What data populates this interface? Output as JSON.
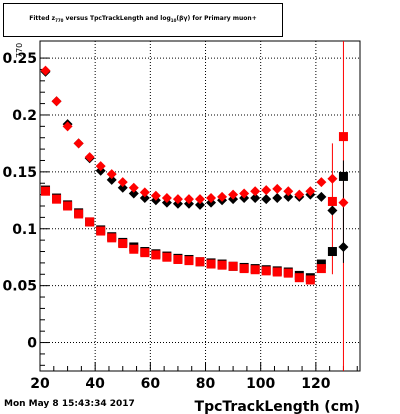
{
  "title": {
    "prefix": "Fitted  z",
    "sub1": "770",
    "middle": "  versus  TpcTrackLength and log",
    "sub2": "10",
    "suffix": "(βγ) for Primary muon+"
  },
  "timestamp": "Mon May  8 15:43:34 2017",
  "chart_data": {
    "type": "scatter",
    "xlabel": "TpcTrackLength (cm)",
    "ylabel": "770",
    "xlim": [
      20,
      136
    ],
    "ylim": [
      -0.025,
      0.265
    ],
    "grid": true,
    "x_ticks": [
      20,
      40,
      60,
      80,
      100,
      120
    ],
    "y_ticks": [
      0,
      0.05,
      0.1,
      0.15,
      0.2,
      0.25
    ],
    "y_tick_labels": [
      "0",
      "0.05",
      "0.1",
      "0.15",
      "0.2",
      "0.25"
    ],
    "series": [
      {
        "marker": "diamond",
        "color": "#000000",
        "points": [
          {
            "x": 22,
            "y": 0.238
          },
          {
            "x": 26,
            "y": 0.212
          },
          {
            "x": 30,
            "y": 0.192
          },
          {
            "x": 34,
            "y": 0.175
          },
          {
            "x": 38,
            "y": 0.162
          },
          {
            "x": 42,
            "y": 0.151
          },
          {
            "x": 46,
            "y": 0.143
          },
          {
            "x": 50,
            "y": 0.136
          },
          {
            "x": 54,
            "y": 0.131
          },
          {
            "x": 58,
            "y": 0.127
          },
          {
            "x": 62,
            "y": 0.125
          },
          {
            "x": 66,
            "y": 0.123
          },
          {
            "x": 70,
            "y": 0.122
          },
          {
            "x": 74,
            "y": 0.122
          },
          {
            "x": 78,
            "y": 0.121
          },
          {
            "x": 82,
            "y": 0.123
          },
          {
            "x": 86,
            "y": 0.125
          },
          {
            "x": 90,
            "y": 0.126
          },
          {
            "x": 94,
            "y": 0.127
          },
          {
            "x": 98,
            "y": 0.127
          },
          {
            "x": 102,
            "y": 0.126
          },
          {
            "x": 106,
            "y": 0.127
          },
          {
            "x": 110,
            "y": 0.128
          },
          {
            "x": 114,
            "y": 0.128
          },
          {
            "x": 118,
            "y": 0.13
          },
          {
            "x": 122,
            "y": 0.128
          },
          {
            "x": 126,
            "y": 0.116
          },
          {
            "x": 130,
            "y": 0.084
          }
        ]
      },
      {
        "marker": "diamond",
        "color": "#ff0000",
        "points": [
          {
            "x": 22,
            "y": 0.239
          },
          {
            "x": 26,
            "y": 0.212
          },
          {
            "x": 30,
            "y": 0.19
          },
          {
            "x": 34,
            "y": 0.175
          },
          {
            "x": 38,
            "y": 0.163
          },
          {
            "x": 42,
            "y": 0.155
          },
          {
            "x": 46,
            "y": 0.148
          },
          {
            "x": 50,
            "y": 0.141
          },
          {
            "x": 54,
            "y": 0.136
          },
          {
            "x": 58,
            "y": 0.132
          },
          {
            "x": 62,
            "y": 0.129
          },
          {
            "x": 66,
            "y": 0.127
          },
          {
            "x": 70,
            "y": 0.126
          },
          {
            "x": 74,
            "y": 0.126
          },
          {
            "x": 78,
            "y": 0.126
          },
          {
            "x": 82,
            "y": 0.127
          },
          {
            "x": 86,
            "y": 0.128
          },
          {
            "x": 90,
            "y": 0.13
          },
          {
            "x": 94,
            "y": 0.131
          },
          {
            "x": 98,
            "y": 0.133
          },
          {
            "x": 102,
            "y": 0.134
          },
          {
            "x": 106,
            "y": 0.135
          },
          {
            "x": 110,
            "y": 0.133
          },
          {
            "x": 114,
            "y": 0.13
          },
          {
            "x": 118,
            "y": 0.133
          },
          {
            "x": 122,
            "y": 0.141
          },
          {
            "x": 126,
            "y": 0.144
          },
          {
            "x": 130,
            "y": 0.123
          }
        ]
      },
      {
        "marker": "square",
        "color": "#000000",
        "points": [
          {
            "x": 22,
            "y": 0.134
          },
          {
            "x": 26,
            "y": 0.127
          },
          {
            "x": 30,
            "y": 0.121
          },
          {
            "x": 34,
            "y": 0.114
          },
          {
            "x": 38,
            "y": 0.106
          },
          {
            "x": 42,
            "y": 0.099
          },
          {
            "x": 46,
            "y": 0.093
          },
          {
            "x": 50,
            "y": 0.088
          },
          {
            "x": 54,
            "y": 0.084
          },
          {
            "x": 58,
            "y": 0.08
          },
          {
            "x": 62,
            "y": 0.078
          },
          {
            "x": 66,
            "y": 0.076
          },
          {
            "x": 70,
            "y": 0.074
          },
          {
            "x": 74,
            "y": 0.073
          },
          {
            "x": 78,
            "y": 0.071
          },
          {
            "x": 82,
            "y": 0.07
          },
          {
            "x": 86,
            "y": 0.069
          },
          {
            "x": 90,
            "y": 0.067
          },
          {
            "x": 94,
            "y": 0.066
          },
          {
            "x": 98,
            "y": 0.065
          },
          {
            "x": 102,
            "y": 0.064
          },
          {
            "x": 106,
            "y": 0.063
          },
          {
            "x": 110,
            "y": 0.062
          },
          {
            "x": 114,
            "y": 0.059
          },
          {
            "x": 118,
            "y": 0.057
          },
          {
            "x": 122,
            "y": 0.069
          },
          {
            "x": 126,
            "y": 0.08
          },
          {
            "x": 130,
            "y": 0.146
          }
        ]
      },
      {
        "marker": "square",
        "color": "#ff0000",
        "points": [
          {
            "x": 22,
            "y": 0.133
          },
          {
            "x": 26,
            "y": 0.126
          },
          {
            "x": 30,
            "y": 0.12
          },
          {
            "x": 34,
            "y": 0.113
          },
          {
            "x": 38,
            "y": 0.106
          },
          {
            "x": 42,
            "y": 0.098
          },
          {
            "x": 46,
            "y": 0.092
          },
          {
            "x": 50,
            "y": 0.087
          },
          {
            "x": 54,
            "y": 0.082
          },
          {
            "x": 58,
            "y": 0.079
          },
          {
            "x": 62,
            "y": 0.077
          },
          {
            "x": 66,
            "y": 0.075
          },
          {
            "x": 70,
            "y": 0.073
          },
          {
            "x": 74,
            "y": 0.072
          },
          {
            "x": 78,
            "y": 0.071
          },
          {
            "x": 82,
            "y": 0.069
          },
          {
            "x": 86,
            "y": 0.068
          },
          {
            "x": 90,
            "y": 0.067
          },
          {
            "x": 94,
            "y": 0.065
          },
          {
            "x": 98,
            "y": 0.064
          },
          {
            "x": 102,
            "y": 0.063
          },
          {
            "x": 106,
            "y": 0.062
          },
          {
            "x": 110,
            "y": 0.061
          },
          {
            "x": 114,
            "y": 0.057
          },
          {
            "x": 118,
            "y": 0.055
          },
          {
            "x": 122,
            "y": 0.065
          },
          {
            "x": 126,
            "y": 0.124
          },
          {
            "x": 130,
            "y": 0.181
          }
        ]
      }
    ],
    "error_bars": [
      {
        "x": 126,
        "ylow": 0.06,
        "yhigh": 0.175,
        "color": "#ff0000"
      },
      {
        "x": 130,
        "ylow": -0.025,
        "yhigh": 0.265,
        "color": "#ff0000"
      },
      {
        "x": 130,
        "ylow": 0.07,
        "yhigh": 0.16,
        "color": "#000000"
      }
    ]
  }
}
